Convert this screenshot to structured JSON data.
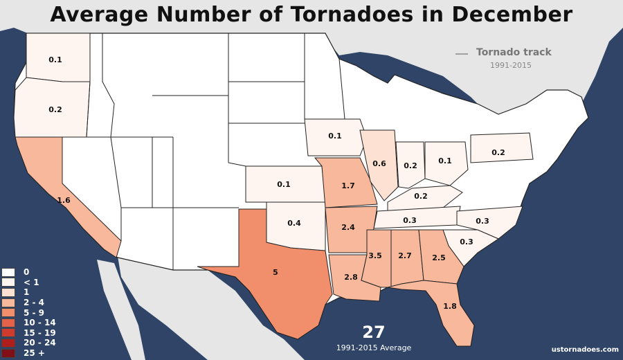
{
  "title": "Average Number of Tornadoes in December",
  "track_legend": {
    "label": "Tornado track",
    "years": "1991-2015"
  },
  "total": {
    "value": "27",
    "label": "1991-2015 Average"
  },
  "credit": "ustornadoes.com",
  "legend": [
    {
      "label": "0",
      "color": "#ffffff"
    },
    {
      "label": "< 1",
      "color": "#fff5f0"
    },
    {
      "label": "1",
      "color": "#fde2d4"
    },
    {
      "label": "2 - 4",
      "color": "#f8b89c"
    },
    {
      "label": "5 - 9",
      "color": "#f18f6c"
    },
    {
      "label": "10 - 14",
      "color": "#e5624a"
    },
    {
      "label": "15 - 19",
      "color": "#cf3b2e"
    },
    {
      "label": "20 - 24",
      "color": "#b01d1d"
    },
    {
      "label": "25 +",
      "color": "#800f18"
    }
  ],
  "states": [
    {
      "label": "0.1"
    },
    {
      "label": "0.2"
    },
    {
      "label": "1.6"
    },
    {
      "label": "5"
    },
    {
      "label": "0.1"
    },
    {
      "label": "0.4"
    },
    {
      "label": "0.1"
    },
    {
      "label": "1.7"
    },
    {
      "label": "2.4"
    },
    {
      "label": "2.8"
    },
    {
      "label": "0.6"
    },
    {
      "label": "0.2"
    },
    {
      "label": "0.1"
    },
    {
      "label": "0.2"
    },
    {
      "label": "0.2"
    },
    {
      "label": "0.3"
    },
    {
      "label": "0.3"
    },
    {
      "label": "0.3"
    },
    {
      "label": "3.5"
    },
    {
      "label": "2.7"
    },
    {
      "label": "2.5"
    },
    {
      "label": "1.8"
    }
  ],
  "colors": {
    "water": "#2f4466",
    "land": "#e6e6e6",
    "state_zero": "#ffffff",
    "border": "#222222"
  }
}
